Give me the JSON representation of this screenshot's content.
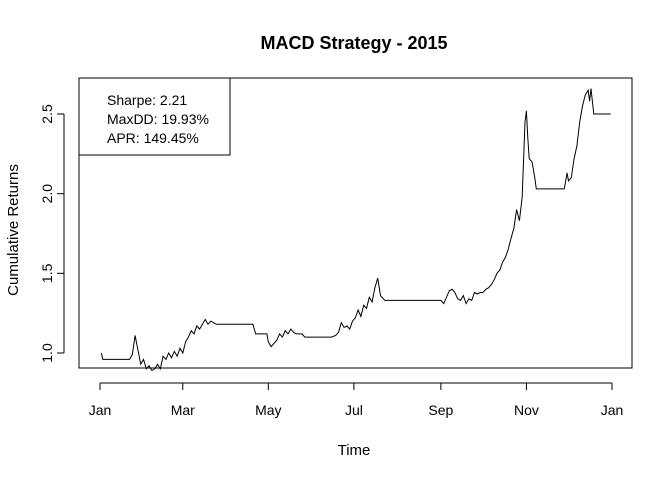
{
  "chart_data": {
    "type": "line",
    "title": "MACD Strategy - 2015",
    "xlabel": "Time",
    "ylabel": "Cumulative Returns",
    "x_ticks": [
      "Jan",
      "Mar",
      "May",
      "Jul",
      "Sep",
      "Nov",
      "Jan"
    ],
    "y_ticks": [
      "1.0",
      "1.5",
      "2.0",
      "2.5"
    ],
    "xlim": [
      "2015-01-01",
      "2016-01-01"
    ],
    "ylim": [
      0.88,
      2.7
    ],
    "grid": false,
    "legend": {
      "placement": "top-left",
      "entries": [
        "Sharpe: 2.21",
        "MaxDD: 19.93%",
        "APR: 149.45%"
      ]
    },
    "series": [
      {
        "points": [
          [
            "2015-01-02",
            1.0
          ],
          [
            "2015-01-03",
            0.96
          ],
          [
            "2015-01-12",
            0.96
          ],
          [
            "2015-01-22",
            0.96
          ],
          [
            "2015-01-24",
            0.99
          ],
          [
            "2015-01-26",
            1.11
          ],
          [
            "2015-01-28",
            1.02
          ],
          [
            "2015-01-30",
            0.93
          ],
          [
            "2015-02-01",
            0.96
          ],
          [
            "2015-02-03",
            0.9
          ],
          [
            "2015-02-05",
            0.92
          ],
          [
            "2015-02-07",
            0.89
          ],
          [
            "2015-02-09",
            0.9
          ],
          [
            "2015-02-11",
            0.93
          ],
          [
            "2015-02-13",
            0.9
          ],
          [
            "2015-02-15",
            0.98
          ],
          [
            "2015-02-17",
            0.96
          ],
          [
            "2015-02-19",
            1.0
          ],
          [
            "2015-02-21",
            0.97
          ],
          [
            "2015-02-23",
            1.01
          ],
          [
            "2015-02-25",
            0.98
          ],
          [
            "2015-02-27",
            1.03
          ],
          [
            "2015-03-01",
            1.0
          ],
          [
            "2015-03-03",
            1.07
          ],
          [
            "2015-03-05",
            1.1
          ],
          [
            "2015-03-07",
            1.14
          ],
          [
            "2015-03-09",
            1.12
          ],
          [
            "2015-03-11",
            1.17
          ],
          [
            "2015-03-13",
            1.15
          ],
          [
            "2015-03-15",
            1.18
          ],
          [
            "2015-03-17",
            1.21
          ],
          [
            "2015-03-19",
            1.18
          ],
          [
            "2015-03-21",
            1.2
          ],
          [
            "2015-03-25",
            1.18
          ],
          [
            "2015-04-10",
            1.18
          ],
          [
            "2015-04-20",
            1.18
          ],
          [
            "2015-04-22",
            1.12
          ],
          [
            "2015-04-30",
            1.12
          ],
          [
            "2015-05-01",
            1.07
          ],
          [
            "2015-05-03",
            1.04
          ],
          [
            "2015-05-05",
            1.06
          ],
          [
            "2015-05-07",
            1.08
          ],
          [
            "2015-05-09",
            1.12
          ],
          [
            "2015-05-11",
            1.1
          ],
          [
            "2015-05-13",
            1.14
          ],
          [
            "2015-05-15",
            1.12
          ],
          [
            "2015-05-17",
            1.15
          ],
          [
            "2015-05-19",
            1.13
          ],
          [
            "2015-05-21",
            1.12
          ],
          [
            "2015-05-25",
            1.12
          ],
          [
            "2015-05-27",
            1.1
          ],
          [
            "2015-06-05",
            1.1
          ],
          [
            "2015-06-15",
            1.1
          ],
          [
            "2015-06-18",
            1.11
          ],
          [
            "2015-06-20",
            1.13
          ],
          [
            "2015-06-22",
            1.19
          ],
          [
            "2015-06-24",
            1.16
          ],
          [
            "2015-06-26",
            1.17
          ],
          [
            "2015-06-28",
            1.15
          ],
          [
            "2015-06-30",
            1.2
          ],
          [
            "2015-07-02",
            1.22
          ],
          [
            "2015-07-04",
            1.27
          ],
          [
            "2015-07-06",
            1.23
          ],
          [
            "2015-07-08",
            1.3
          ],
          [
            "2015-07-10",
            1.28
          ],
          [
            "2015-07-12",
            1.35
          ],
          [
            "2015-07-14",
            1.32
          ],
          [
            "2015-07-16",
            1.41
          ],
          [
            "2015-07-18",
            1.47
          ],
          [
            "2015-07-20",
            1.36
          ],
          [
            "2015-07-22",
            1.34
          ],
          [
            "2015-07-23",
            1.33
          ],
          [
            "2015-08-15",
            1.33
          ],
          [
            "2015-09-01",
            1.33
          ],
          [
            "2015-09-03",
            1.31
          ],
          [
            "2015-09-05",
            1.35
          ],
          [
            "2015-09-07",
            1.39
          ],
          [
            "2015-09-09",
            1.4
          ],
          [
            "2015-09-11",
            1.38
          ],
          [
            "2015-09-13",
            1.34
          ],
          [
            "2015-09-15",
            1.33
          ],
          [
            "2015-09-17",
            1.36
          ],
          [
            "2015-09-19",
            1.31
          ],
          [
            "2015-09-21",
            1.34
          ],
          [
            "2015-09-23",
            1.33
          ],
          [
            "2015-09-25",
            1.38
          ],
          [
            "2015-09-27",
            1.37
          ],
          [
            "2015-09-29",
            1.38
          ],
          [
            "2015-10-01",
            1.38
          ],
          [
            "2015-10-03",
            1.4
          ],
          [
            "2015-10-05",
            1.41
          ],
          [
            "2015-10-07",
            1.43
          ],
          [
            "2015-10-09",
            1.46
          ],
          [
            "2015-10-11",
            1.5
          ],
          [
            "2015-10-13",
            1.52
          ],
          [
            "2015-10-15",
            1.57
          ],
          [
            "2015-10-17",
            1.6
          ],
          [
            "2015-10-19",
            1.65
          ],
          [
            "2015-10-21",
            1.72
          ],
          [
            "2015-10-23",
            1.78
          ],
          [
            "2015-10-25",
            1.9
          ],
          [
            "2015-10-27",
            1.83
          ],
          [
            "2015-10-29",
            1.98
          ],
          [
            "2015-10-31",
            2.45
          ],
          [
            "2015-11-01",
            2.52
          ],
          [
            "2015-11-02",
            2.35
          ],
          [
            "2015-11-03",
            2.22
          ],
          [
            "2015-11-05",
            2.2
          ],
          [
            "2015-11-07",
            2.1
          ],
          [
            "2015-11-08",
            2.03
          ],
          [
            "2015-11-20",
            2.03
          ],
          [
            "2015-11-28",
            2.03
          ],
          [
            "2015-11-30",
            2.13
          ],
          [
            "2015-12-01",
            2.08
          ],
          [
            "2015-12-03",
            2.1
          ],
          [
            "2015-12-05",
            2.22
          ],
          [
            "2015-12-07",
            2.3
          ],
          [
            "2015-12-09",
            2.45
          ],
          [
            "2015-12-11",
            2.55
          ],
          [
            "2015-12-13",
            2.62
          ],
          [
            "2015-12-15",
            2.65
          ],
          [
            "2015-12-16",
            2.58
          ],
          [
            "2015-12-17",
            2.66
          ],
          [
            "2015-12-19",
            2.5
          ],
          [
            "2015-12-31",
            2.5
          ]
        ]
      }
    ]
  }
}
